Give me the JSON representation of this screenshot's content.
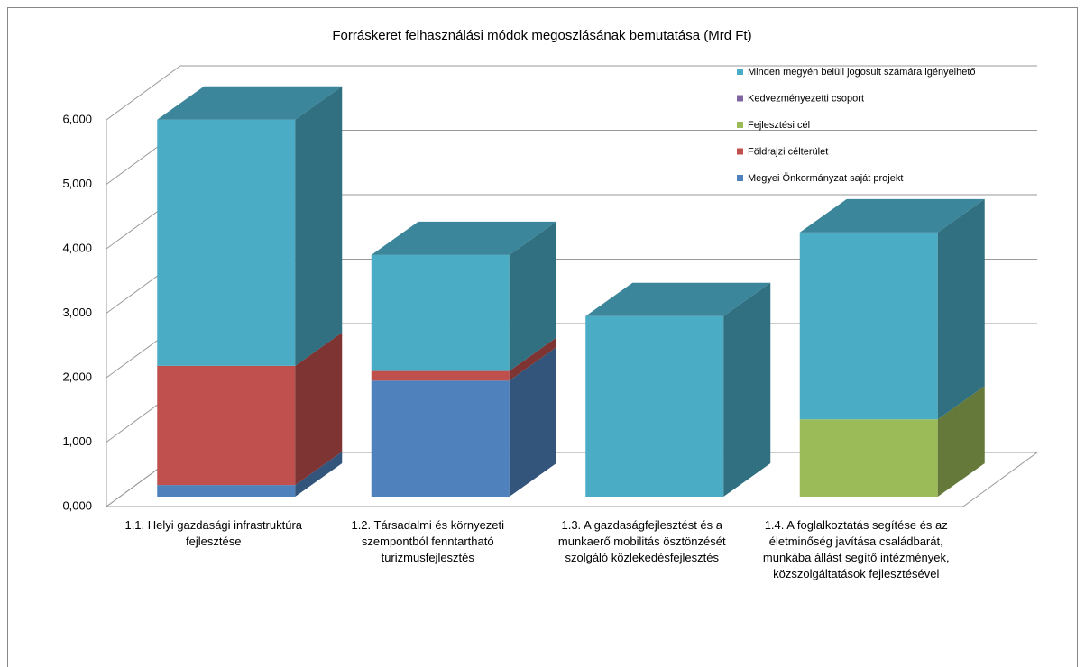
{
  "chart_data": {
    "type": "bar3d_stacked",
    "title": "Forráskeret felhasználási módok megoszlásának bemutatása (Mrd Ft)",
    "categories": [
      "1.1. Helyi gazdasági infrastruktúra fejlesztése",
      "1.2. Társadalmi és környezeti szempontból fenntartható turizmusfejlesztés",
      "1.3. A gazdaságfejlesztést és a munkaerő mobilitás ösztönzését szolgáló közlekedésfejlesztés",
      "1.4. A foglalkoztatás segítése és az életminőség javítása családbarát, munkába állást segítő intézmények, közszolgáltatások fejlesztésével"
    ],
    "series": [
      {
        "name": "Megyei Önkormányzat saját projekt",
        "color": "#4f81bd",
        "values": [
          180,
          1800,
          0,
          0
        ]
      },
      {
        "name": "Földrajzi célterület",
        "color": "#c0504d",
        "values": [
          1850,
          150,
          0,
          0
        ]
      },
      {
        "name": "Fejlesztési cél",
        "color": "#9bbb59",
        "values": [
          0,
          0,
          0,
          1200
        ]
      },
      {
        "name": "Kedvezményezetti csoport",
        "color": "#8064a2",
        "values": [
          0,
          0,
          0,
          0
        ]
      },
      {
        "name": "Minden megyén belüli jogosult számára igényelhető",
        "color": "#4bacc6",
        "values": [
          3820,
          1800,
          2800,
          2900
        ]
      }
    ],
    "ylim": [
      0,
      6000
    ],
    "yticks": [
      {
        "value": 0,
        "label": "0,000"
      },
      {
        "value": 1000,
        "label": "1,000"
      },
      {
        "value": 2000,
        "label": "2,000"
      },
      {
        "value": 3000,
        "label": "3,000"
      },
      {
        "value": 4000,
        "label": "4,000"
      },
      {
        "value": 5000,
        "label": "5,000"
      },
      {
        "value": 6000,
        "label": "6,000"
      }
    ],
    "grid": true,
    "legend": "upper right"
  }
}
